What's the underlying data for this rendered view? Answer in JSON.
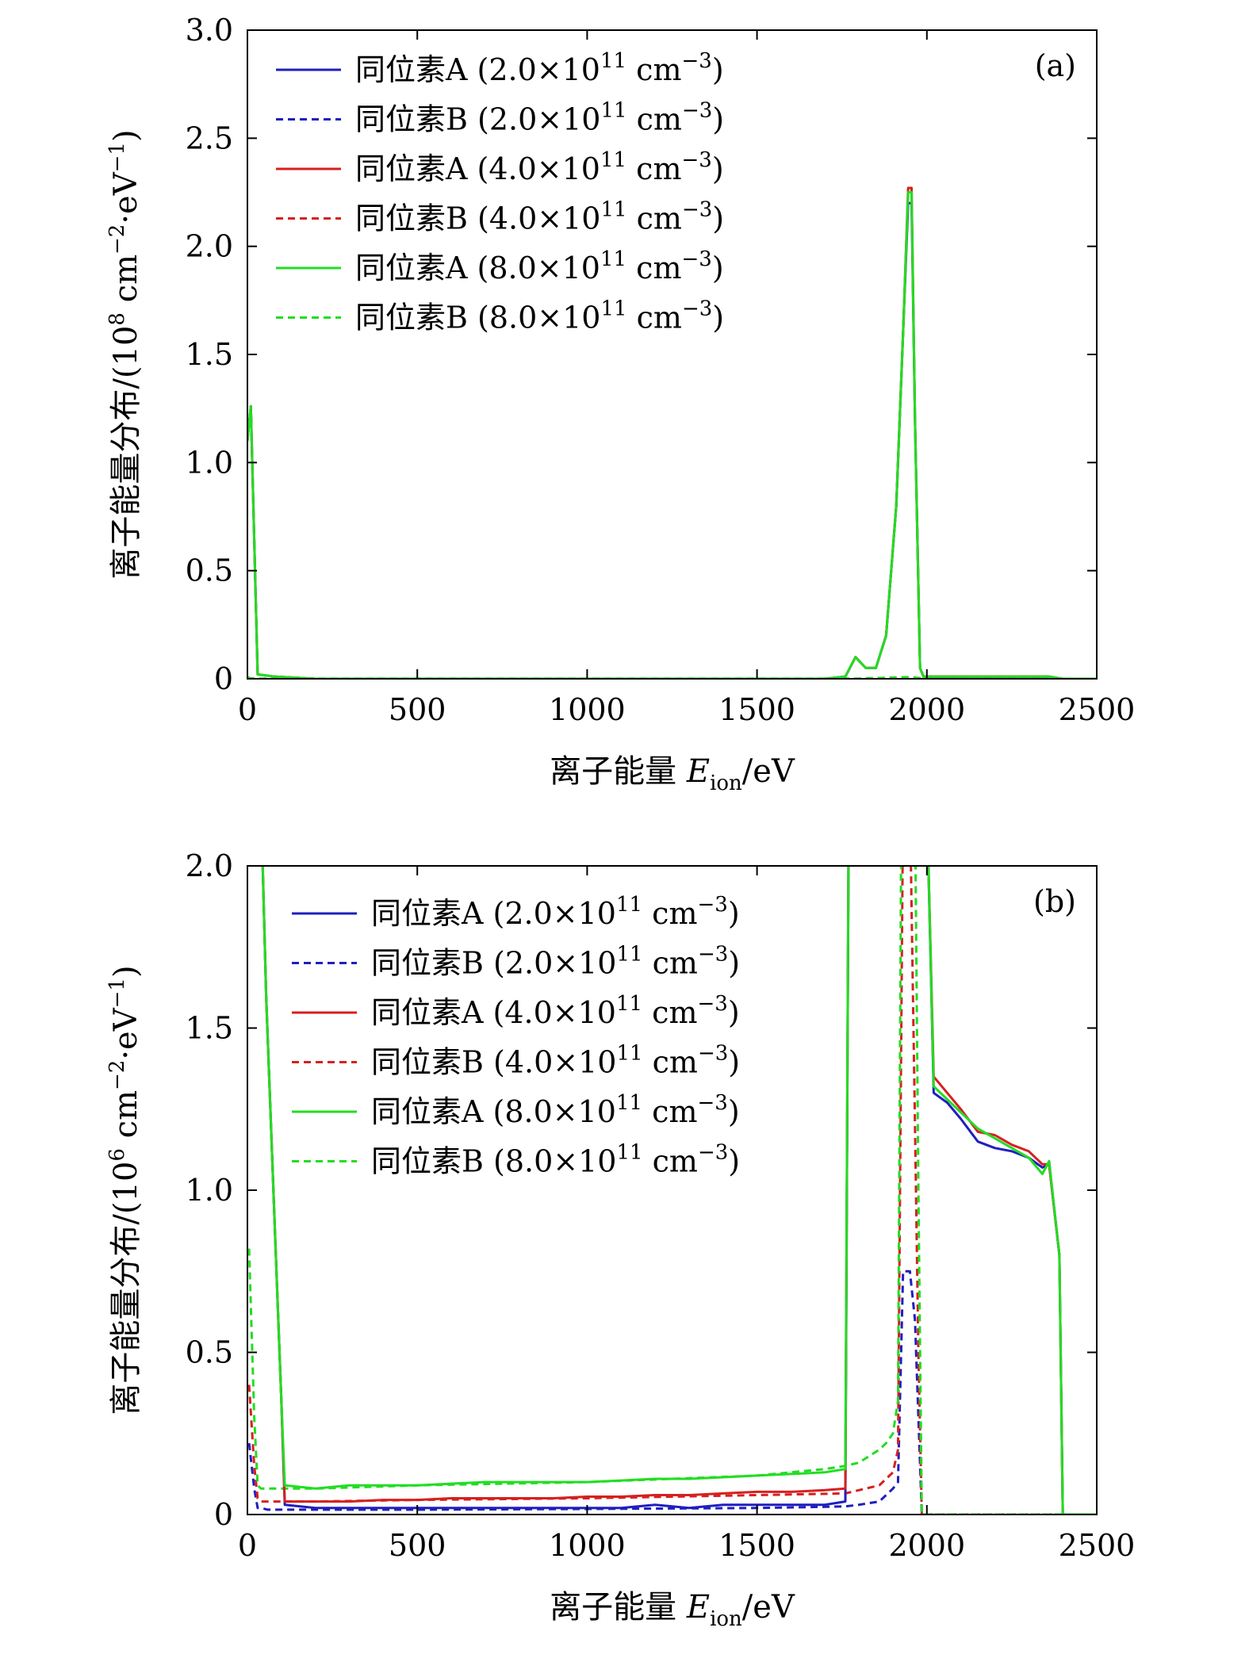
{
  "chart_data": [
    {
      "type": "line",
      "panel_label": "(a)",
      "xlabel": "离子能量 E_ion/eV",
      "xlabel_parts": [
        "离子能量 ",
        "E",
        "ion",
        "/eV"
      ],
      "ylabel": "离子能量分布/(10^8 cm^-2·eV^-1)",
      "xlim": [
        0,
        2500
      ],
      "ylim": [
        0,
        3.0
      ],
      "xticks": [
        0,
        500,
        1000,
        1500,
        2000,
        2500
      ],
      "yticks": [
        0,
        0.5,
        1.0,
        1.5,
        2.0,
        2.5,
        3.0
      ],
      "ytick_labels": [
        "0",
        "0.5",
        "1.0",
        "1.5",
        "2.0",
        "2.5",
        "3.0"
      ],
      "grid": false,
      "legend_position": "top-left",
      "series": [
        {
          "name": "同位素A (2.0×10^11 cm^-3)",
          "color": "#1f1fbf",
          "dash": "solid",
          "x": [
            0,
            10,
            30,
            80,
            200,
            1000,
            1700,
            1760,
            1790,
            1820,
            1850,
            1880,
            1910,
            1930,
            1945,
            1955,
            1965,
            1980,
            1990,
            2100,
            2300,
            2360,
            2400,
            2500
          ],
          "y": [
            1.1,
            1.26,
            0.02,
            0.01,
            0.0,
            0.0,
            0.0,
            0.01,
            0.1,
            0.05,
            0.05,
            0.2,
            0.8,
            1.6,
            2.2,
            2.2,
            1.2,
            0.05,
            0.01,
            0.01,
            0.01,
            0.01,
            0.0,
            0.0
          ]
        },
        {
          "name": "同位素B (2.0×10^11 cm^-3)",
          "color": "#1f1fbf",
          "dash": "dashed",
          "x": [
            0,
            10,
            30,
            200,
            1000,
            1800,
            1950,
            2000,
            2500
          ],
          "y": [
            0.002,
            0.0,
            0.0,
            0.0,
            0.0,
            0.0,
            0.002,
            0.0,
            0.0
          ]
        },
        {
          "name": "同位素A (4.0×10^11 cm^-3)",
          "color": "#d62020",
          "dash": "solid",
          "x": [
            0,
            10,
            30,
            80,
            200,
            1000,
            1700,
            1760,
            1790,
            1820,
            1850,
            1880,
            1910,
            1930,
            1945,
            1955,
            1965,
            1980,
            1990,
            2100,
            2300,
            2360,
            2400,
            2500
          ],
          "y": [
            1.1,
            1.26,
            0.02,
            0.01,
            0.0,
            0.0,
            0.0,
            0.01,
            0.1,
            0.05,
            0.05,
            0.2,
            0.8,
            1.6,
            2.27,
            2.27,
            1.2,
            0.05,
            0.01,
            0.01,
            0.01,
            0.01,
            0.0,
            0.0
          ]
        },
        {
          "name": "同位素B (4.0×10^11 cm^-3)",
          "color": "#d62020",
          "dash": "dashed",
          "x": [
            0,
            10,
            30,
            200,
            1000,
            1800,
            1950,
            2000,
            2500
          ],
          "y": [
            0.004,
            0.001,
            0.0,
            0.0,
            0.0,
            0.0,
            0.004,
            0.0,
            0.0
          ]
        },
        {
          "name": "同位素A (8.0×10^11 cm^-3)",
          "color": "#22dd22",
          "dash": "solid",
          "x": [
            0,
            10,
            30,
            80,
            200,
            1000,
            1700,
            1760,
            1790,
            1820,
            1850,
            1880,
            1910,
            1930,
            1945,
            1955,
            1965,
            1980,
            1990,
            2100,
            2300,
            2360,
            2400,
            2500
          ],
          "y": [
            1.1,
            1.26,
            0.02,
            0.01,
            0.0,
            0.0,
            0.0,
            0.01,
            0.1,
            0.05,
            0.05,
            0.2,
            0.8,
            1.6,
            2.25,
            2.25,
            1.2,
            0.05,
            0.01,
            0.01,
            0.01,
            0.01,
            0.0,
            0.0
          ]
        },
        {
          "name": "同位素B (8.0×10^11 cm^-3)",
          "color": "#22dd22",
          "dash": "dashed",
          "x": [
            0,
            10,
            30,
            200,
            1000,
            1800,
            1950,
            2000,
            2500
          ],
          "y": [
            0.008,
            0.002,
            0.001,
            0.001,
            0.001,
            0.001,
            0.008,
            0.0,
            0.0
          ]
        }
      ]
    },
    {
      "type": "line",
      "panel_label": "(b)",
      "xlabel": "离子能量 E_ion/eV",
      "xlabel_parts": [
        "离子能量 ",
        "E",
        "ion",
        "/eV"
      ],
      "ylabel": "离子能量分布/(10^6 cm^-2·eV^-1)",
      "xlim": [
        0,
        2500
      ],
      "ylim": [
        0,
        2.0
      ],
      "xticks": [
        0,
        500,
        1000,
        1500,
        2000,
        2500
      ],
      "yticks": [
        0,
        0.5,
        1.0,
        1.5,
        2.0
      ],
      "ytick_labels": [
        "0",
        "0.5",
        "1.0",
        "1.5",
        "2.0"
      ],
      "grid": false,
      "legend_position": "top-left",
      "series": [
        {
          "name": "同位素A (2.0×10^11 cm^-3)",
          "color": "#1f1fbf",
          "dash": "solid",
          "x": [
            40,
            55,
            80,
            100,
            110,
            200,
            300,
            400,
            500,
            600,
            700,
            800,
            900,
            1000,
            1100,
            1200,
            1300,
            1400,
            1500,
            1600,
            1700,
            1760,
            1770,
            1790,
            1810,
            1860,
            1900,
            1940,
            1970,
            1990,
            2000,
            2020,
            2060,
            2100,
            2150,
            2200,
            2250,
            2300,
            2340,
            2360,
            2390,
            2400,
            2450,
            2500
          ],
          "y": [
            2.2,
            1.6,
            0.9,
            0.35,
            0.03,
            0.02,
            0.02,
            0.02,
            0.02,
            0.02,
            0.02,
            0.02,
            0.02,
            0.02,
            0.02,
            0.03,
            0.02,
            0.03,
            0.03,
            0.03,
            0.03,
            0.04,
            2.2,
            2.2,
            2.2,
            2.2,
            2.2,
            2.2,
            2.2,
            2.2,
            2.2,
            1.3,
            1.27,
            1.22,
            1.15,
            1.13,
            1.12,
            1.1,
            1.07,
            1.08,
            0.8,
            0.0,
            0.0,
            0.0
          ]
        },
        {
          "name": "同位素B (2.0×10^11 cm^-3)",
          "color": "#1f1fbf",
          "dash": "dashed",
          "x": [
            5,
            20,
            30,
            40,
            60,
            200,
            500,
            1000,
            1500,
            1760,
            1800,
            1860,
            1880,
            1900,
            1915,
            1930,
            1940,
            1950,
            1965,
            1975,
            1985,
            2000,
            2500
          ],
          "y": [
            0.22,
            0.08,
            0.02,
            0.02,
            0.015,
            0.015,
            0.015,
            0.017,
            0.02,
            0.025,
            0.03,
            0.04,
            0.06,
            0.08,
            0.1,
            0.75,
            0.75,
            0.75,
            0.6,
            0.3,
            0.0,
            0.0,
            0.0
          ]
        },
        {
          "name": "同位素A (4.0×10^11 cm^-3)",
          "color": "#d62020",
          "dash": "solid",
          "x": [
            40,
            55,
            80,
            100,
            110,
            200,
            300,
            400,
            500,
            600,
            700,
            800,
            900,
            1000,
            1100,
            1200,
            1300,
            1400,
            1500,
            1600,
            1700,
            1760,
            1770,
            1790,
            1810,
            1860,
            1900,
            1940,
            1970,
            1990,
            2000,
            2020,
            2060,
            2100,
            2150,
            2200,
            2250,
            2300,
            2340,
            2360,
            2390,
            2400,
            2450,
            2500
          ],
          "y": [
            2.2,
            1.6,
            0.9,
            0.35,
            0.04,
            0.04,
            0.04,
            0.045,
            0.045,
            0.05,
            0.05,
            0.05,
            0.05,
            0.055,
            0.055,
            0.06,
            0.06,
            0.065,
            0.07,
            0.07,
            0.075,
            0.08,
            2.2,
            2.2,
            2.2,
            2.2,
            2.2,
            2.2,
            2.2,
            2.2,
            2.2,
            1.35,
            1.3,
            1.25,
            1.18,
            1.17,
            1.14,
            1.12,
            1.08,
            1.08,
            0.8,
            0.0,
            0.0,
            0.0
          ]
        },
        {
          "name": "同位素B (4.0×10^11 cm^-3)",
          "color": "#d62020",
          "dash": "dashed",
          "x": [
            5,
            20,
            30,
            40,
            60,
            200,
            500,
            1000,
            1500,
            1760,
            1800,
            1860,
            1880,
            1900,
            1915,
            1930,
            1940,
            1950,
            1965,
            1975,
            1985,
            2000,
            2500
          ],
          "y": [
            0.4,
            0.15,
            0.05,
            0.04,
            0.04,
            0.04,
            0.045,
            0.05,
            0.06,
            0.065,
            0.075,
            0.09,
            0.11,
            0.13,
            0.2,
            2.2,
            2.2,
            2.2,
            1.2,
            0.5,
            0.0,
            0.0,
            0.0
          ]
        },
        {
          "name": "同位素A (8.0×10^11 cm^-3)",
          "color": "#22dd22",
          "dash": "solid",
          "x": [
            40,
            55,
            80,
            100,
            110,
            200,
            300,
            400,
            500,
            600,
            700,
            800,
            900,
            1000,
            1100,
            1200,
            1300,
            1400,
            1500,
            1600,
            1700,
            1760,
            1770,
            1790,
            1810,
            1860,
            1900,
            1940,
            1970,
            1990,
            2000,
            2020,
            2060,
            2100,
            2150,
            2200,
            2250,
            2300,
            2340,
            2360,
            2390,
            2400,
            2450,
            2500
          ],
          "y": [
            2.2,
            1.6,
            0.9,
            0.35,
            0.09,
            0.08,
            0.09,
            0.09,
            0.09,
            0.095,
            0.1,
            0.1,
            0.1,
            0.1,
            0.105,
            0.11,
            0.11,
            0.115,
            0.12,
            0.125,
            0.13,
            0.14,
            2.2,
            2.2,
            2.2,
            2.2,
            2.2,
            2.2,
            2.2,
            2.2,
            2.2,
            1.32,
            1.28,
            1.24,
            1.19,
            1.16,
            1.13,
            1.1,
            1.05,
            1.09,
            0.8,
            0.0,
            0.0,
            0.0
          ]
        },
        {
          "name": "同位素B (8.0×10^11 cm^-3)",
          "color": "#22dd22",
          "dash": "dashed",
          "x": [
            5,
            20,
            30,
            40,
            60,
            200,
            500,
            1000,
            1500,
            1700,
            1760,
            1800,
            1860,
            1880,
            1900,
            1915,
            1925,
            1935,
            1950,
            1965,
            1975,
            1985,
            2000,
            2500
          ],
          "y": [
            0.82,
            0.3,
            0.09,
            0.08,
            0.08,
            0.08,
            0.09,
            0.1,
            0.12,
            0.14,
            0.15,
            0.16,
            0.2,
            0.22,
            0.25,
            0.35,
            2.2,
            2.2,
            2.2,
            2.2,
            1.0,
            0.0,
            0.0,
            0.0
          ]
        }
      ]
    }
  ],
  "legend_entries": [
    {
      "label": "同位素A",
      "paren": "(2.0×10",
      "exp": "11",
      "unit": " cm",
      "unit_exp": "−3",
      "close": ")"
    },
    {
      "label": "同位素B",
      "paren": "(2.0×10",
      "exp": "11",
      "unit": " cm",
      "unit_exp": "−3",
      "close": ")"
    },
    {
      "label": "同位素A",
      "paren": "(4.0×10",
      "exp": "11",
      "unit": " cm",
      "unit_exp": "−3",
      "close": ")"
    },
    {
      "label": "同位素B",
      "paren": "(4.0×10",
      "exp": "11",
      "unit": " cm",
      "unit_exp": "−3",
      "close": ")"
    },
    {
      "label": "同位素A",
      "paren": "(8.0×10",
      "exp": "11",
      "unit": " cm",
      "unit_exp": "−3",
      "close": ")"
    },
    {
      "label": "同位素B",
      "paren": "(8.0×10",
      "exp": "11",
      "unit": " cm",
      "unit_exp": "−3",
      "close": ")"
    }
  ],
  "ylabel_parts": {
    "a": {
      "prefix": "离子能量分布/(10",
      "exp": "8",
      "mid": " cm",
      "exp2": "−2",
      "dot": "·eV",
      "exp3": "−1",
      "close": ")"
    },
    "b": {
      "prefix": "离子能量分布/(10",
      "exp": "6",
      "mid": " cm",
      "exp2": "−2",
      "dot": "·eV",
      "exp3": "−1",
      "close": ")"
    }
  }
}
